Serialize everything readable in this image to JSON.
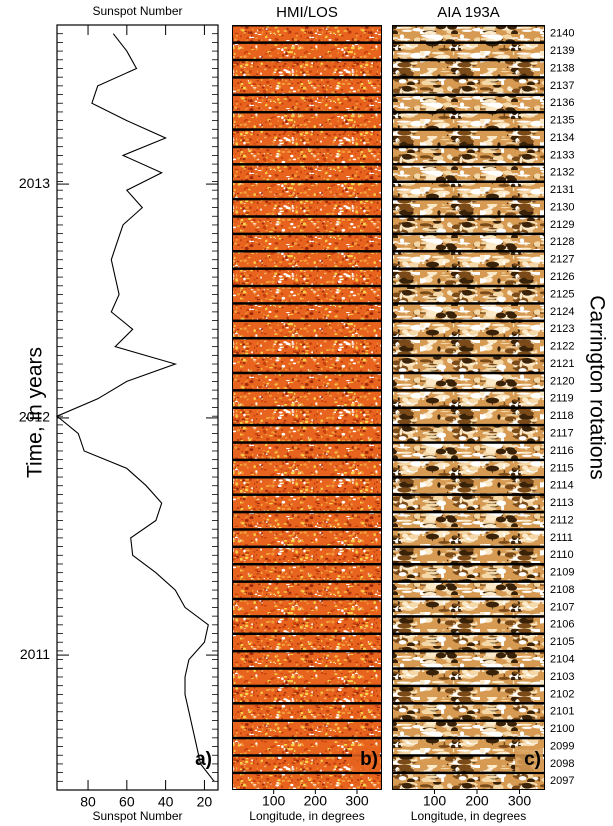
{
  "chart_data": [
    {
      "type": "line",
      "title": "Sunspot Number",
      "xlabel": "Sunspot Number",
      "ylabel": "Time, in years",
      "panel_label": "a)",
      "y": [
        2097,
        2098,
        2099,
        2100,
        2101,
        2102,
        2103,
        2104,
        2105,
        2106,
        2107,
        2108,
        2109,
        2110,
        2111,
        2112,
        2113,
        2114,
        2115,
        2116,
        2117,
        2118,
        2119,
        2120,
        2121,
        2122,
        2123,
        2124,
        2125,
        2126,
        2127,
        2128,
        2129,
        2130,
        2131,
        2132,
        2133,
        2134,
        2135,
        2136,
        2137,
        2138,
        2139,
        2140
      ],
      "values": [
        15,
        22,
        24,
        26,
        28,
        30,
        30,
        28,
        20,
        18,
        30,
        35,
        45,
        57,
        58,
        45,
        42,
        50,
        60,
        82,
        85,
        96,
        75,
        60,
        35,
        66,
        57,
        68,
        64,
        66,
        68,
        65,
        62,
        52,
        60,
        42,
        62,
        40,
        60,
        78,
        75,
        55,
        60,
        67
      ],
      "color": "#000000",
      "xlim": [
        96,
        13
      ],
      "xticks": [
        20,
        40,
        60,
        80
      ],
      "ylim": [
        2096.5,
        2140.5
      ],
      "yticks": [
        {
          "value": 2104.26,
          "label": "2011"
        },
        {
          "value": 2117.9,
          "label": "2012"
        },
        {
          "value": 2131.35,
          "label": "2013"
        }
      ]
    },
    {
      "type": "image",
      "title": "HMI/LOS",
      "xlabel": "Longitude, in degrees",
      "panel_label": "b)",
      "xlim": [
        0,
        360
      ],
      "xticks": [
        100,
        200,
        300
      ]
    },
    {
      "type": "image",
      "title": "AIA 193A",
      "xlabel": "Longitude, in degrees",
      "panel_label": "c)",
      "ylabel": "Carrington rotations",
      "xlim": [
        0,
        360
      ],
      "xticks": [
        100,
        200,
        300
      ]
    }
  ]
}
